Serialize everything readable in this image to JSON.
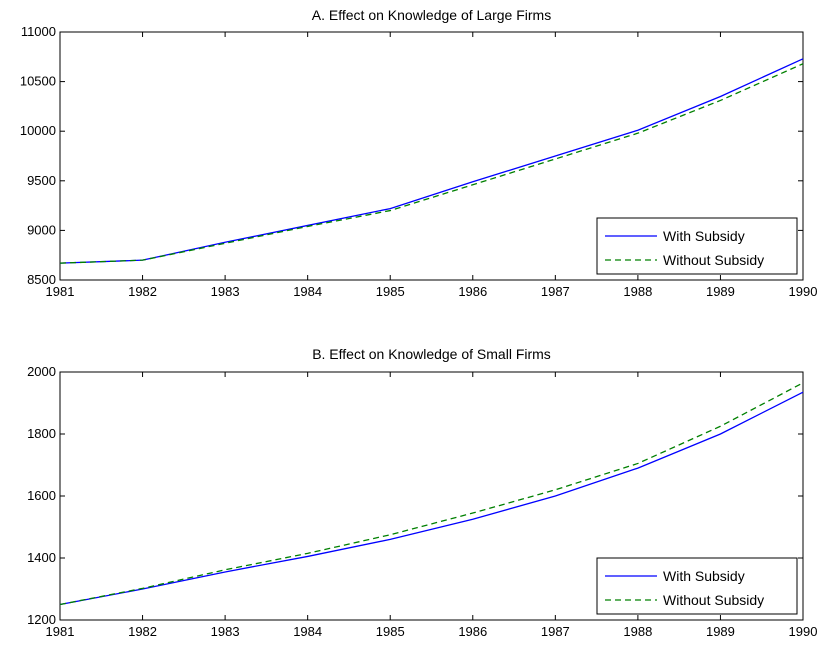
{
  "chart_data": [
    {
      "type": "line",
      "title": "A. Effect on Knowledge of Large Firms",
      "x": [
        1981,
        1982,
        1983,
        1984,
        1985,
        1986,
        1987,
        1988,
        1989,
        1990
      ],
      "xlim": [
        1981,
        1990
      ],
      "ylim": [
        8500,
        11000
      ],
      "xticks": [
        1981,
        1982,
        1983,
        1984,
        1985,
        1986,
        1987,
        1988,
        1989,
        1990
      ],
      "yticks": [
        8500,
        9000,
        9500,
        10000,
        10500,
        11000
      ],
      "legend_position": "bottom-right",
      "grid": false,
      "series": [
        {
          "name": "With Subsidy",
          "color": "#0000ff",
          "dash": "solid",
          "values": [
            8670,
            8700,
            8880,
            9050,
            9220,
            9490,
            9750,
            10010,
            10350,
            10730
          ]
        },
        {
          "name": "Without Subsidy",
          "color": "#008000",
          "dash": "dashed",
          "values": [
            8670,
            8700,
            8870,
            9040,
            9200,
            9460,
            9720,
            9980,
            10310,
            10680
          ]
        }
      ]
    },
    {
      "type": "line",
      "title": "B. Effect on Knowledge of Small Firms",
      "x": [
        1981,
        1982,
        1983,
        1984,
        1985,
        1986,
        1987,
        1988,
        1989,
        1990
      ],
      "xlim": [
        1981,
        1990
      ],
      "ylim": [
        1200,
        2000
      ],
      "xticks": [
        1981,
        1982,
        1983,
        1984,
        1985,
        1986,
        1987,
        1988,
        1989,
        1990
      ],
      "yticks": [
        1200,
        1400,
        1600,
        1800,
        2000
      ],
      "legend_position": "bottom-right",
      "grid": false,
      "series": [
        {
          "name": "With Subsidy",
          "color": "#0000ff",
          "dash": "solid",
          "values": [
            1250,
            1300,
            1355,
            1405,
            1460,
            1525,
            1600,
            1690,
            1800,
            1935
          ]
        },
        {
          "name": "Without Subsidy",
          "color": "#008000",
          "dash": "dashed",
          "values": [
            1250,
            1302,
            1362,
            1415,
            1475,
            1545,
            1620,
            1705,
            1825,
            1965
          ]
        }
      ]
    }
  ]
}
